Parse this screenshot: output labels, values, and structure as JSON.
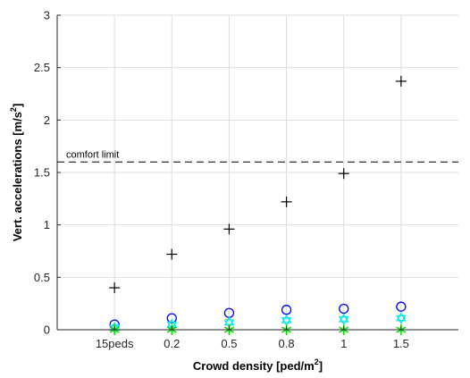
{
  "chart_data": {
    "type": "scatter",
    "categories": [
      "15peds",
      "0.2",
      "0.5",
      "0.8",
      "1",
      "1.5"
    ],
    "ylim": [
      0,
      3
    ],
    "yticks": [
      "0",
      "0.5",
      "1",
      "1.5",
      "2",
      "2.5",
      "3"
    ],
    "xlabel": {
      "text": "Crowd density [ped/m",
      "sup": "2",
      "suffix": "]"
    },
    "ylabel": {
      "text": "Vert. accelerations [m/s",
      "sup": "2",
      "suffix": "]"
    },
    "grid": true,
    "series": [
      {
        "marker": "plus",
        "color": "#000000",
        "values": [
          0.4,
          0.72,
          0.96,
          1.22,
          1.49,
          2.37
        ]
      },
      {
        "marker": "circle",
        "color": "#0000ff",
        "values": [
          0.05,
          0.11,
          0.16,
          0.19,
          0.2,
          0.22
        ]
      },
      {
        "marker": "hexagram",
        "color": "#00e5e5",
        "values": [
          0.02,
          0.05,
          0.07,
          0.09,
          0.1,
          0.11
        ]
      },
      {
        "marker": "asterisk",
        "color": "#00e000",
        "values": [
          0.0,
          0.0,
          0.0,
          0.0,
          0.0,
          0.0
        ]
      }
    ],
    "reference_line": {
      "value": 1.6,
      "label": "comfort limit",
      "style": "dashed",
      "color": "#000000"
    }
  }
}
